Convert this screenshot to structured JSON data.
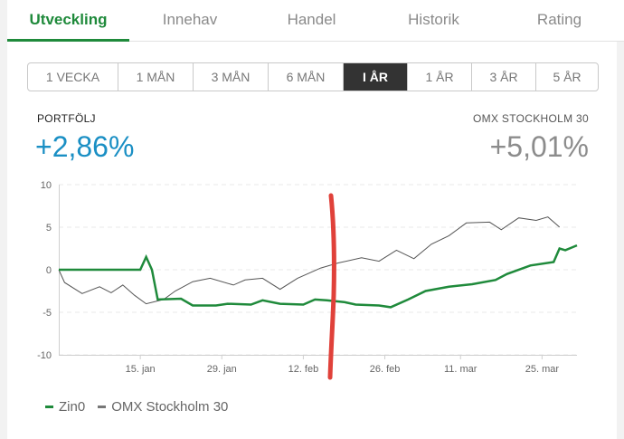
{
  "tabs": [
    {
      "label": "Utveckling",
      "active": true
    },
    {
      "label": "Innehav",
      "active": false
    },
    {
      "label": "Handel",
      "active": false
    },
    {
      "label": "Historik",
      "active": false
    },
    {
      "label": "Rating",
      "active": false
    }
  ],
  "periods": [
    {
      "label": "1 VECKA",
      "active": false
    },
    {
      "label": "1 MÅN",
      "active": false
    },
    {
      "label": "3 MÅN",
      "active": false
    },
    {
      "label": "6 MÅN",
      "active": false
    },
    {
      "label": "I ÅR",
      "active": true
    },
    {
      "label": "1 ÅR",
      "active": false
    },
    {
      "label": "3 ÅR",
      "active": false
    },
    {
      "label": "5 ÅR",
      "active": false
    }
  ],
  "summary": {
    "left_label": "PORTFÖLJ",
    "left_value": "+2,86%",
    "right_label": "OMX STOCKHOLM 30",
    "right_value": "+5,01%"
  },
  "colors": {
    "accent": "#1f8a3b",
    "portfolio_value": "#1a8fc4",
    "index_value": "#8c8c8c",
    "portfolio_line": "#1f8a3b",
    "index_line": "#555555",
    "annotation": "#e0413a"
  },
  "chart_data": {
    "type": "line",
    "ylim": [
      -10,
      10
    ],
    "yticks": [
      "10",
      "5",
      "0",
      "-5",
      "-10"
    ],
    "xlim": [
      "2018-01-01",
      "2018-03-31"
    ],
    "xticks": [
      {
        "date": "2018-01-15",
        "label": "15. jan"
      },
      {
        "date": "2018-01-29",
        "label": "29. jan"
      },
      {
        "date": "2018-02-12",
        "label": "12. feb"
      },
      {
        "date": "2018-02-26",
        "label": "26. feb"
      },
      {
        "date": "2018-03-11",
        "label": "11. mar"
      },
      {
        "date": "2018-03-25",
        "label": "25. mar"
      }
    ],
    "grid": true,
    "legend_position": "bottom-left",
    "series": [
      {
        "name": "Zin0",
        "color": "#1f8a3b",
        "points": [
          [
            "2018-01-01",
            0
          ],
          [
            "2018-01-02",
            0
          ],
          [
            "2018-01-12",
            0
          ],
          [
            "2018-01-15",
            0
          ],
          [
            "2018-01-16",
            1.5
          ],
          [
            "2018-01-17",
            0
          ],
          [
            "2018-01-18",
            -3.5
          ],
          [
            "2018-01-22",
            -3.4
          ],
          [
            "2018-01-24",
            -4.2
          ],
          [
            "2018-01-28",
            -4.2
          ],
          [
            "2018-01-30",
            -4.0
          ],
          [
            "2018-02-03",
            -4.1
          ],
          [
            "2018-02-05",
            -3.6
          ],
          [
            "2018-02-08",
            -4.0
          ],
          [
            "2018-02-12",
            -4.1
          ],
          [
            "2018-02-14",
            -3.5
          ],
          [
            "2018-02-16",
            -3.6
          ],
          [
            "2018-02-19",
            -3.8
          ],
          [
            "2018-02-21",
            -4.1
          ],
          [
            "2018-02-25",
            -4.2
          ],
          [
            "2018-02-27",
            -4.4
          ],
          [
            "2018-03-02",
            -3.5
          ],
          [
            "2018-03-05",
            -2.5
          ],
          [
            "2018-03-09",
            -2.0
          ],
          [
            "2018-03-13",
            -1.7
          ],
          [
            "2018-03-17",
            -1.2
          ],
          [
            "2018-03-19",
            -0.5
          ],
          [
            "2018-03-23",
            0.5
          ],
          [
            "2018-03-27",
            0.9
          ],
          [
            "2018-03-28",
            2.5
          ],
          [
            "2018-03-29",
            2.3
          ],
          [
            "2018-03-31",
            2.86
          ]
        ]
      },
      {
        "name": "OMX Stockholm 30",
        "color": "#555555",
        "points": [
          [
            "2018-01-01",
            0
          ],
          [
            "2018-01-02",
            -1.5
          ],
          [
            "2018-01-05",
            -2.8
          ],
          [
            "2018-01-08",
            -2.0
          ],
          [
            "2018-01-10",
            -2.7
          ],
          [
            "2018-01-12",
            -1.8
          ],
          [
            "2018-01-14",
            -3.0
          ],
          [
            "2018-01-16",
            -4.0
          ],
          [
            "2018-01-19",
            -3.5
          ],
          [
            "2018-01-21",
            -2.5
          ],
          [
            "2018-01-24",
            -1.4
          ],
          [
            "2018-01-27",
            -1.0
          ],
          [
            "2018-01-31",
            -1.8
          ],
          [
            "2018-02-02",
            -1.2
          ],
          [
            "2018-02-05",
            -1.0
          ],
          [
            "2018-02-08",
            -2.3
          ],
          [
            "2018-02-11",
            -1.0
          ],
          [
            "2018-02-15",
            0.2
          ],
          [
            "2018-02-18",
            0.8
          ],
          [
            "2018-02-22",
            1.4
          ],
          [
            "2018-02-25",
            1.0
          ],
          [
            "2018-02-28",
            2.3
          ],
          [
            "2018-03-03",
            1.3
          ],
          [
            "2018-03-06",
            3.0
          ],
          [
            "2018-03-09",
            4.0
          ],
          [
            "2018-03-12",
            5.5
          ],
          [
            "2018-03-16",
            5.6
          ],
          [
            "2018-03-18",
            4.7
          ],
          [
            "2018-03-21",
            6.1
          ],
          [
            "2018-03-24",
            5.8
          ],
          [
            "2018-03-26",
            6.2
          ],
          [
            "2018-03-28",
            5.01
          ]
        ]
      }
    ]
  }
}
